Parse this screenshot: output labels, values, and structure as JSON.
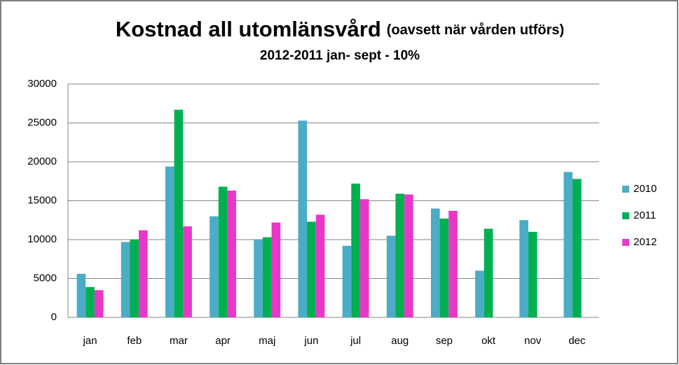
{
  "chart_data": {
    "type": "bar",
    "title": "Kostnad all utomlänsvård",
    "title_note": "(oavsett när vården utförs)",
    "subtitle": "2012-2011 jan- sept - 10%",
    "categories": [
      "jan",
      "feb",
      "mar",
      "apr",
      "maj",
      "jun",
      "jul",
      "aug",
      "sep",
      "okt",
      "nov",
      "dec"
    ],
    "series": [
      {
        "name": "2010",
        "color": "#4bacc6",
        "values": [
          5600,
          9700,
          19400,
          13000,
          10000,
          25300,
          9200,
          10500,
          14000,
          6000,
          12500,
          18700
        ]
      },
      {
        "name": "2011",
        "color": "#00b050",
        "values": [
          3900,
          10000,
          26700,
          16800,
          10300,
          12300,
          17200,
          15900,
          12700,
          11400,
          11000,
          17800
        ]
      },
      {
        "name": "2012",
        "color": "#e838c8",
        "values": [
          3500,
          11200,
          11700,
          16300,
          12200,
          13200,
          15200,
          15800,
          13700,
          null,
          null,
          null
        ]
      }
    ],
    "ylim": [
      0,
      30000
    ],
    "yticks": [
      0,
      5000,
      10000,
      15000,
      20000,
      25000,
      30000
    ],
    "grid": true,
    "legend": "right"
  }
}
